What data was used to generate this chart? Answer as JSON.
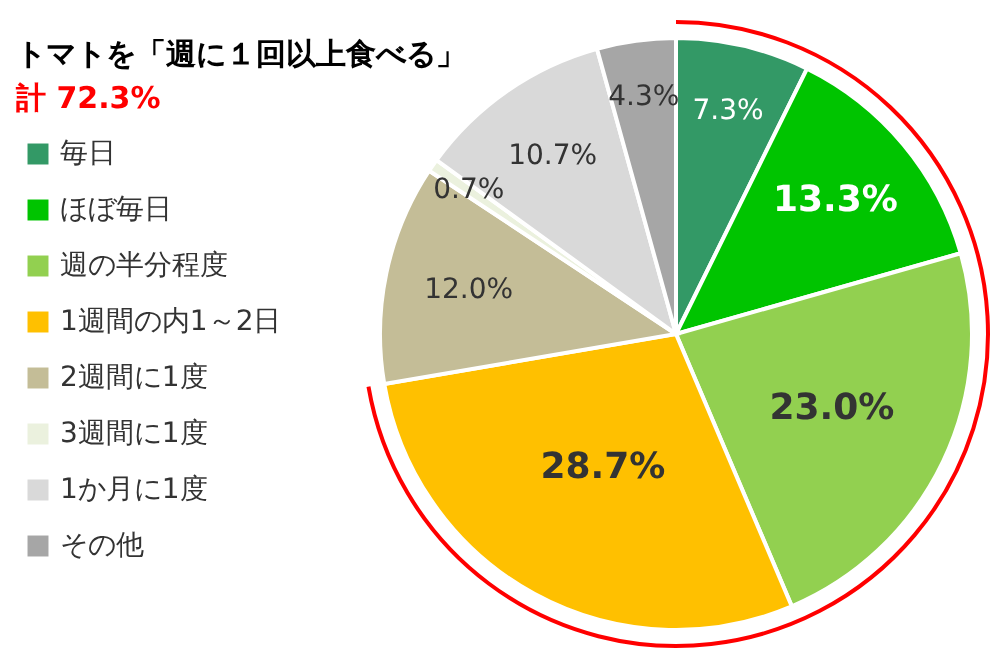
{
  "chart_data": {
    "type": "pie",
    "title": "トマトを「週に１回以上食べる」",
    "subtitle": "計 72.3%",
    "categories": [
      "毎日",
      "ほぼ毎日",
      "週の半分程度",
      "1週間の内1～2日",
      "2週間に1度",
      "3週間に1度",
      "1か月に1度",
      "その他"
    ],
    "values": [
      7.3,
      13.3,
      23.0,
      28.7,
      12.0,
      0.7,
      10.7,
      4.3
    ],
    "colors": [
      "#339966",
      "#00c400",
      "#92d050",
      "#ffc000",
      "#c4bd97",
      "#ebf1de",
      "#d9d9d9",
      "#a6a6a6"
    ],
    "value_labels": [
      "7.3%",
      "13.3%",
      "23.0%",
      "28.7%",
      "12.0%",
      "0.7%",
      "10.7%",
      "4.3%"
    ],
    "legend": "left"
  }
}
